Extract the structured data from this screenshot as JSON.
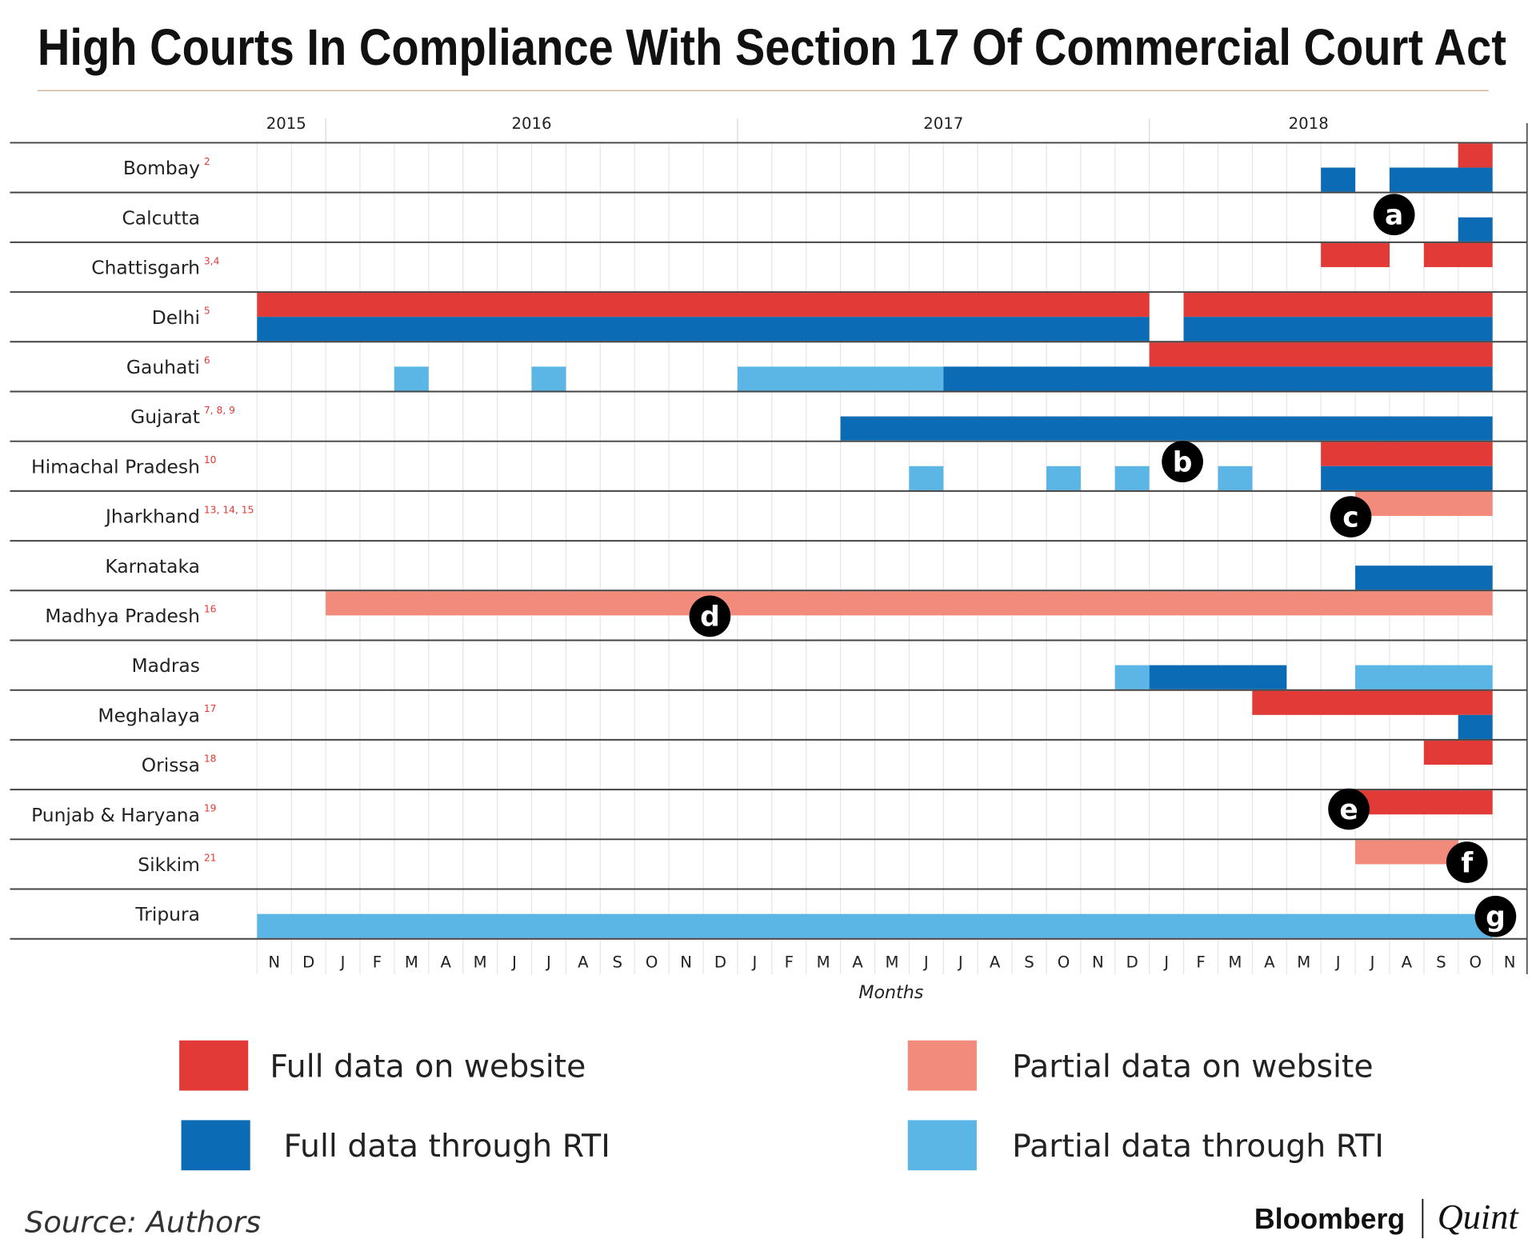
{
  "chart_data": {
    "type": "timeline",
    "title": "High Courts In Compliance With Section 17 Of Commercial Court Act",
    "xlabel": "Months",
    "years": [
      {
        "label": "2015",
        "month": "2015-11"
      },
      {
        "label": "2016",
        "month": "2016-01"
      },
      {
        "label": "2017",
        "month": "2017-01"
      },
      {
        "label": "2018",
        "month": "2018-01"
      }
    ],
    "x_range": [
      "2015-11",
      "2018-11"
    ],
    "month_ticks": [
      "N",
      "D",
      "J",
      "F",
      "M",
      "A",
      "M",
      "J",
      "J",
      "A",
      "S",
      "O",
      "N",
      "D",
      "J",
      "F",
      "M",
      "A",
      "M",
      "J",
      "J",
      "A",
      "S",
      "O",
      "N",
      "D",
      "J",
      "F",
      "M",
      "A",
      "M",
      "J",
      "J",
      "A",
      "S",
      "O",
      "N"
    ],
    "legend": [
      {
        "key": "website_full",
        "label": "Full data on website",
        "color": "#e23a36"
      },
      {
        "key": "rti_full",
        "label": "Full data through RTI",
        "color": "#0b6bb5"
      },
      {
        "key": "website_partial",
        "label": "Partial data on website",
        "color": "#f28b7b"
      },
      {
        "key": "rti_partial",
        "label": "Partial data through RTI",
        "color": "#5bb6e6"
      }
    ],
    "rows": [
      {
        "name": "Bombay",
        "notes": "2",
        "segments": [
          {
            "kind": "website_full",
            "start": "2018-10",
            "end": "2018-10"
          },
          {
            "kind": "rti_full",
            "start": "2018-06",
            "end": "2018-06"
          },
          {
            "kind": "rti_full",
            "start": "2018-08",
            "end": "2018-10"
          }
        ]
      },
      {
        "name": "Calcutta",
        "notes": "",
        "marker": "a",
        "segments": [
          {
            "kind": "rti_full",
            "start": "2018-10",
            "end": "2018-10"
          }
        ]
      },
      {
        "name": "Chattisgarh",
        "notes": "3,4",
        "segments": [
          {
            "kind": "website_full",
            "start": "2018-06",
            "end": "2018-07"
          },
          {
            "kind": "website_full",
            "start": "2018-09",
            "end": "2018-10"
          }
        ]
      },
      {
        "name": "Delhi",
        "notes": "5",
        "segments": [
          {
            "kind": "website_full",
            "start": "2015-11",
            "end": "2017-12"
          },
          {
            "kind": "website_full",
            "start": "2018-02",
            "end": "2018-10"
          },
          {
            "kind": "rti_full",
            "start": "2015-11",
            "end": "2017-12"
          },
          {
            "kind": "rti_full",
            "start": "2018-02",
            "end": "2018-10"
          }
        ]
      },
      {
        "name": "Gauhati",
        "notes": "6",
        "segments": [
          {
            "kind": "website_full",
            "start": "2018-01",
            "end": "2018-10"
          },
          {
            "kind": "rti_partial",
            "start": "2016-03",
            "end": "2016-03"
          },
          {
            "kind": "rti_partial",
            "start": "2016-07",
            "end": "2016-07"
          },
          {
            "kind": "rti_partial",
            "start": "2017-01",
            "end": "2017-06"
          },
          {
            "kind": "rti_full",
            "start": "2017-07",
            "end": "2018-10"
          }
        ]
      },
      {
        "name": "Gujarat",
        "notes": "7, 8, 9",
        "segments": [
          {
            "kind": "rti_full",
            "start": "2017-04",
            "end": "2018-10"
          }
        ]
      },
      {
        "name": "Himachal Pradesh",
        "notes": "10",
        "marker": "b",
        "segments": [
          {
            "kind": "website_full",
            "start": "2018-06",
            "end": "2018-10"
          },
          {
            "kind": "rti_partial",
            "start": "2017-06",
            "end": "2017-06"
          },
          {
            "kind": "rti_partial",
            "start": "2017-10",
            "end": "2017-10"
          },
          {
            "kind": "rti_partial",
            "start": "2017-12",
            "end": "2017-12"
          },
          {
            "kind": "rti_partial",
            "start": "2018-03",
            "end": "2018-03"
          },
          {
            "kind": "rti_full",
            "start": "2018-06",
            "end": "2018-10"
          }
        ]
      },
      {
        "name": "Jharkhand",
        "notes": "13, 14, 15",
        "marker": "c",
        "segments": [
          {
            "kind": "website_partial",
            "start": "2018-07",
            "end": "2018-10"
          }
        ]
      },
      {
        "name": "Karnataka",
        "notes": "",
        "segments": [
          {
            "kind": "rti_full",
            "start": "2018-07",
            "end": "2018-10"
          }
        ]
      },
      {
        "name": "Madhya Pradesh",
        "notes": "16",
        "marker": "d",
        "segments": [
          {
            "kind": "website_partial",
            "start": "2016-01",
            "end": "2018-10"
          }
        ]
      },
      {
        "name": "Madras",
        "notes": "",
        "segments": [
          {
            "kind": "rti_partial",
            "start": "2017-12",
            "end": "2017-12"
          },
          {
            "kind": "rti_full",
            "start": "2018-01",
            "end": "2018-04"
          },
          {
            "kind": "rti_partial",
            "start": "2018-07",
            "end": "2018-10"
          }
        ]
      },
      {
        "name": "Meghalaya",
        "notes": "17",
        "segments": [
          {
            "kind": "website_full",
            "start": "2018-04",
            "end": "2018-10"
          },
          {
            "kind": "rti_full",
            "start": "2018-10",
            "end": "2018-10"
          }
        ]
      },
      {
        "name": "Orissa",
        "notes": "18",
        "segments": [
          {
            "kind": "website_full",
            "start": "2018-09",
            "end": "2018-10"
          }
        ]
      },
      {
        "name": "Punjab & Haryana",
        "notes": "19",
        "marker": "e",
        "segments": [
          {
            "kind": "website_full",
            "start": "2018-07",
            "end": "2018-10"
          }
        ]
      },
      {
        "name": "Sikkim",
        "notes": "21",
        "marker": "f",
        "segments": [
          {
            "kind": "website_partial",
            "start": "2018-07",
            "end": "2018-09"
          }
        ]
      },
      {
        "name": "Tripura",
        "notes": "",
        "marker": "g",
        "segments": [
          {
            "kind": "rti_partial",
            "start": "2015-11",
            "end": "2018-10"
          }
        ]
      }
    ]
  },
  "footer": {
    "source": "Source: Authors",
    "brand_left": "Bloomberg",
    "brand_right": "Quint"
  }
}
